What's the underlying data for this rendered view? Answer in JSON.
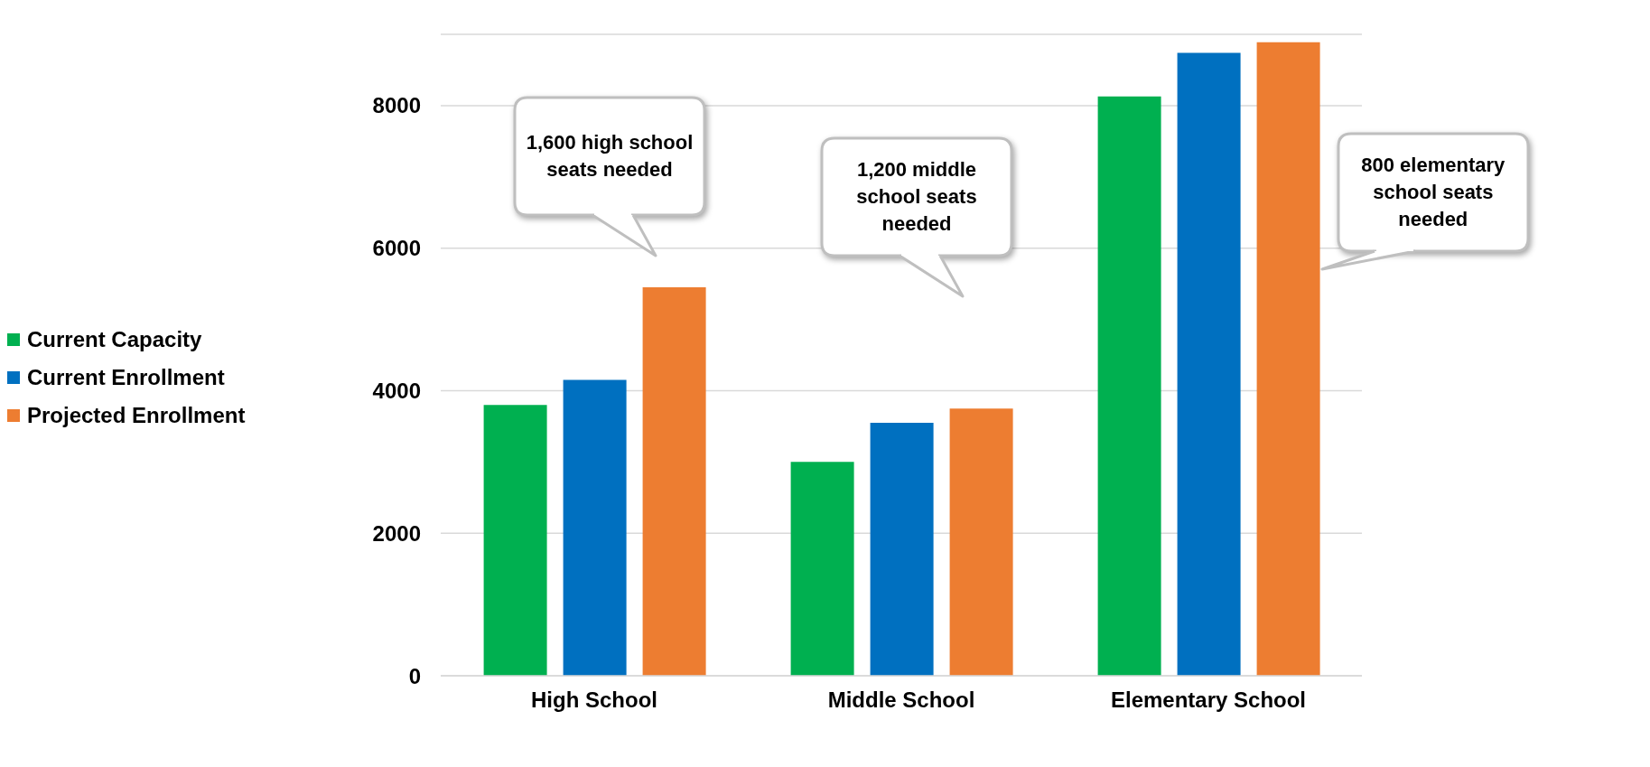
{
  "chart_data": {
    "type": "bar",
    "categories": [
      "High School",
      "Middle School",
      "Elementary School"
    ],
    "series": [
      {
        "name": "Current Capacity",
        "color": "#00b050",
        "values": [
          3800,
          3000,
          8130
        ]
      },
      {
        "name": "Current Enrollment",
        "color": "#0070c0",
        "values": [
          4150,
          3550,
          8740
        ]
      },
      {
        "name": "Projected Enrollment",
        "color": "#ed7d31",
        "values": [
          5450,
          3750,
          8890
        ]
      }
    ],
    "ylim": [
      0,
      9000
    ],
    "yticks": [
      0,
      2000,
      4000,
      6000,
      8000
    ],
    "grid": "y",
    "legend": "left",
    "annotations": [
      "1,600 high school seats needed",
      "1,200 middle school seats needed",
      "800 elementary school seats needed"
    ]
  }
}
